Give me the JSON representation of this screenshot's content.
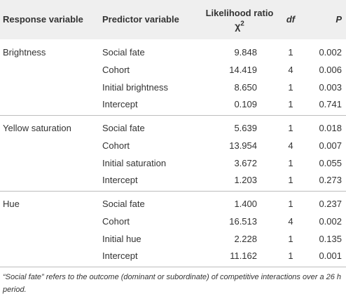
{
  "table": {
    "headers": {
      "response": "Response variable",
      "predictor": "Predictor variable",
      "likelihood": "Likelihood ratio",
      "chi_symbol": "χ",
      "chi_sup": "2",
      "df": "df",
      "p": "P"
    },
    "groups": [
      {
        "response": "Brightness",
        "rows": [
          {
            "predictor": "Social fate",
            "lr": "9.848",
            "df": "1",
            "p": "0.002"
          },
          {
            "predictor": "Cohort",
            "lr": "14.419",
            "df": "4",
            "p": "0.006"
          },
          {
            "predictor": "Initial brightness",
            "lr": "8.650",
            "df": "1",
            "p": "0.003"
          },
          {
            "predictor": "Intercept",
            "lr": "0.109",
            "df": "1",
            "p": "0.741"
          }
        ]
      },
      {
        "response": "Yellow saturation",
        "rows": [
          {
            "predictor": "Social fate",
            "lr": "5.639",
            "df": "1",
            "p": "0.018"
          },
          {
            "predictor": "Cohort",
            "lr": "13.954",
            "df": "4",
            "p": "0.007"
          },
          {
            "predictor": "Initial saturation",
            "lr": "3.672",
            "df": "1",
            "p": "0.055"
          },
          {
            "predictor": "Intercept",
            "lr": "1.203",
            "df": "1",
            "p": "0.273"
          }
        ]
      },
      {
        "response": "Hue",
        "rows": [
          {
            "predictor": "Social fate",
            "lr": "1.400",
            "df": "1",
            "p": "0.237"
          },
          {
            "predictor": "Cohort",
            "lr": "16.513",
            "df": "4",
            "p": "0.002"
          },
          {
            "predictor": "Initial hue",
            "lr": "2.228",
            "df": "1",
            "p": "0.135"
          },
          {
            "predictor": "Intercept",
            "lr": "11.162",
            "df": "1",
            "p": "0.001"
          }
        ]
      }
    ]
  },
  "footnote": "“Social fate” refers to the outcome (dominant or subordinate) of competitive interactions over a 26 h period.",
  "colors": {
    "header_bg": "#efefef",
    "text": "#333333",
    "rule": "#bdbdbd"
  }
}
